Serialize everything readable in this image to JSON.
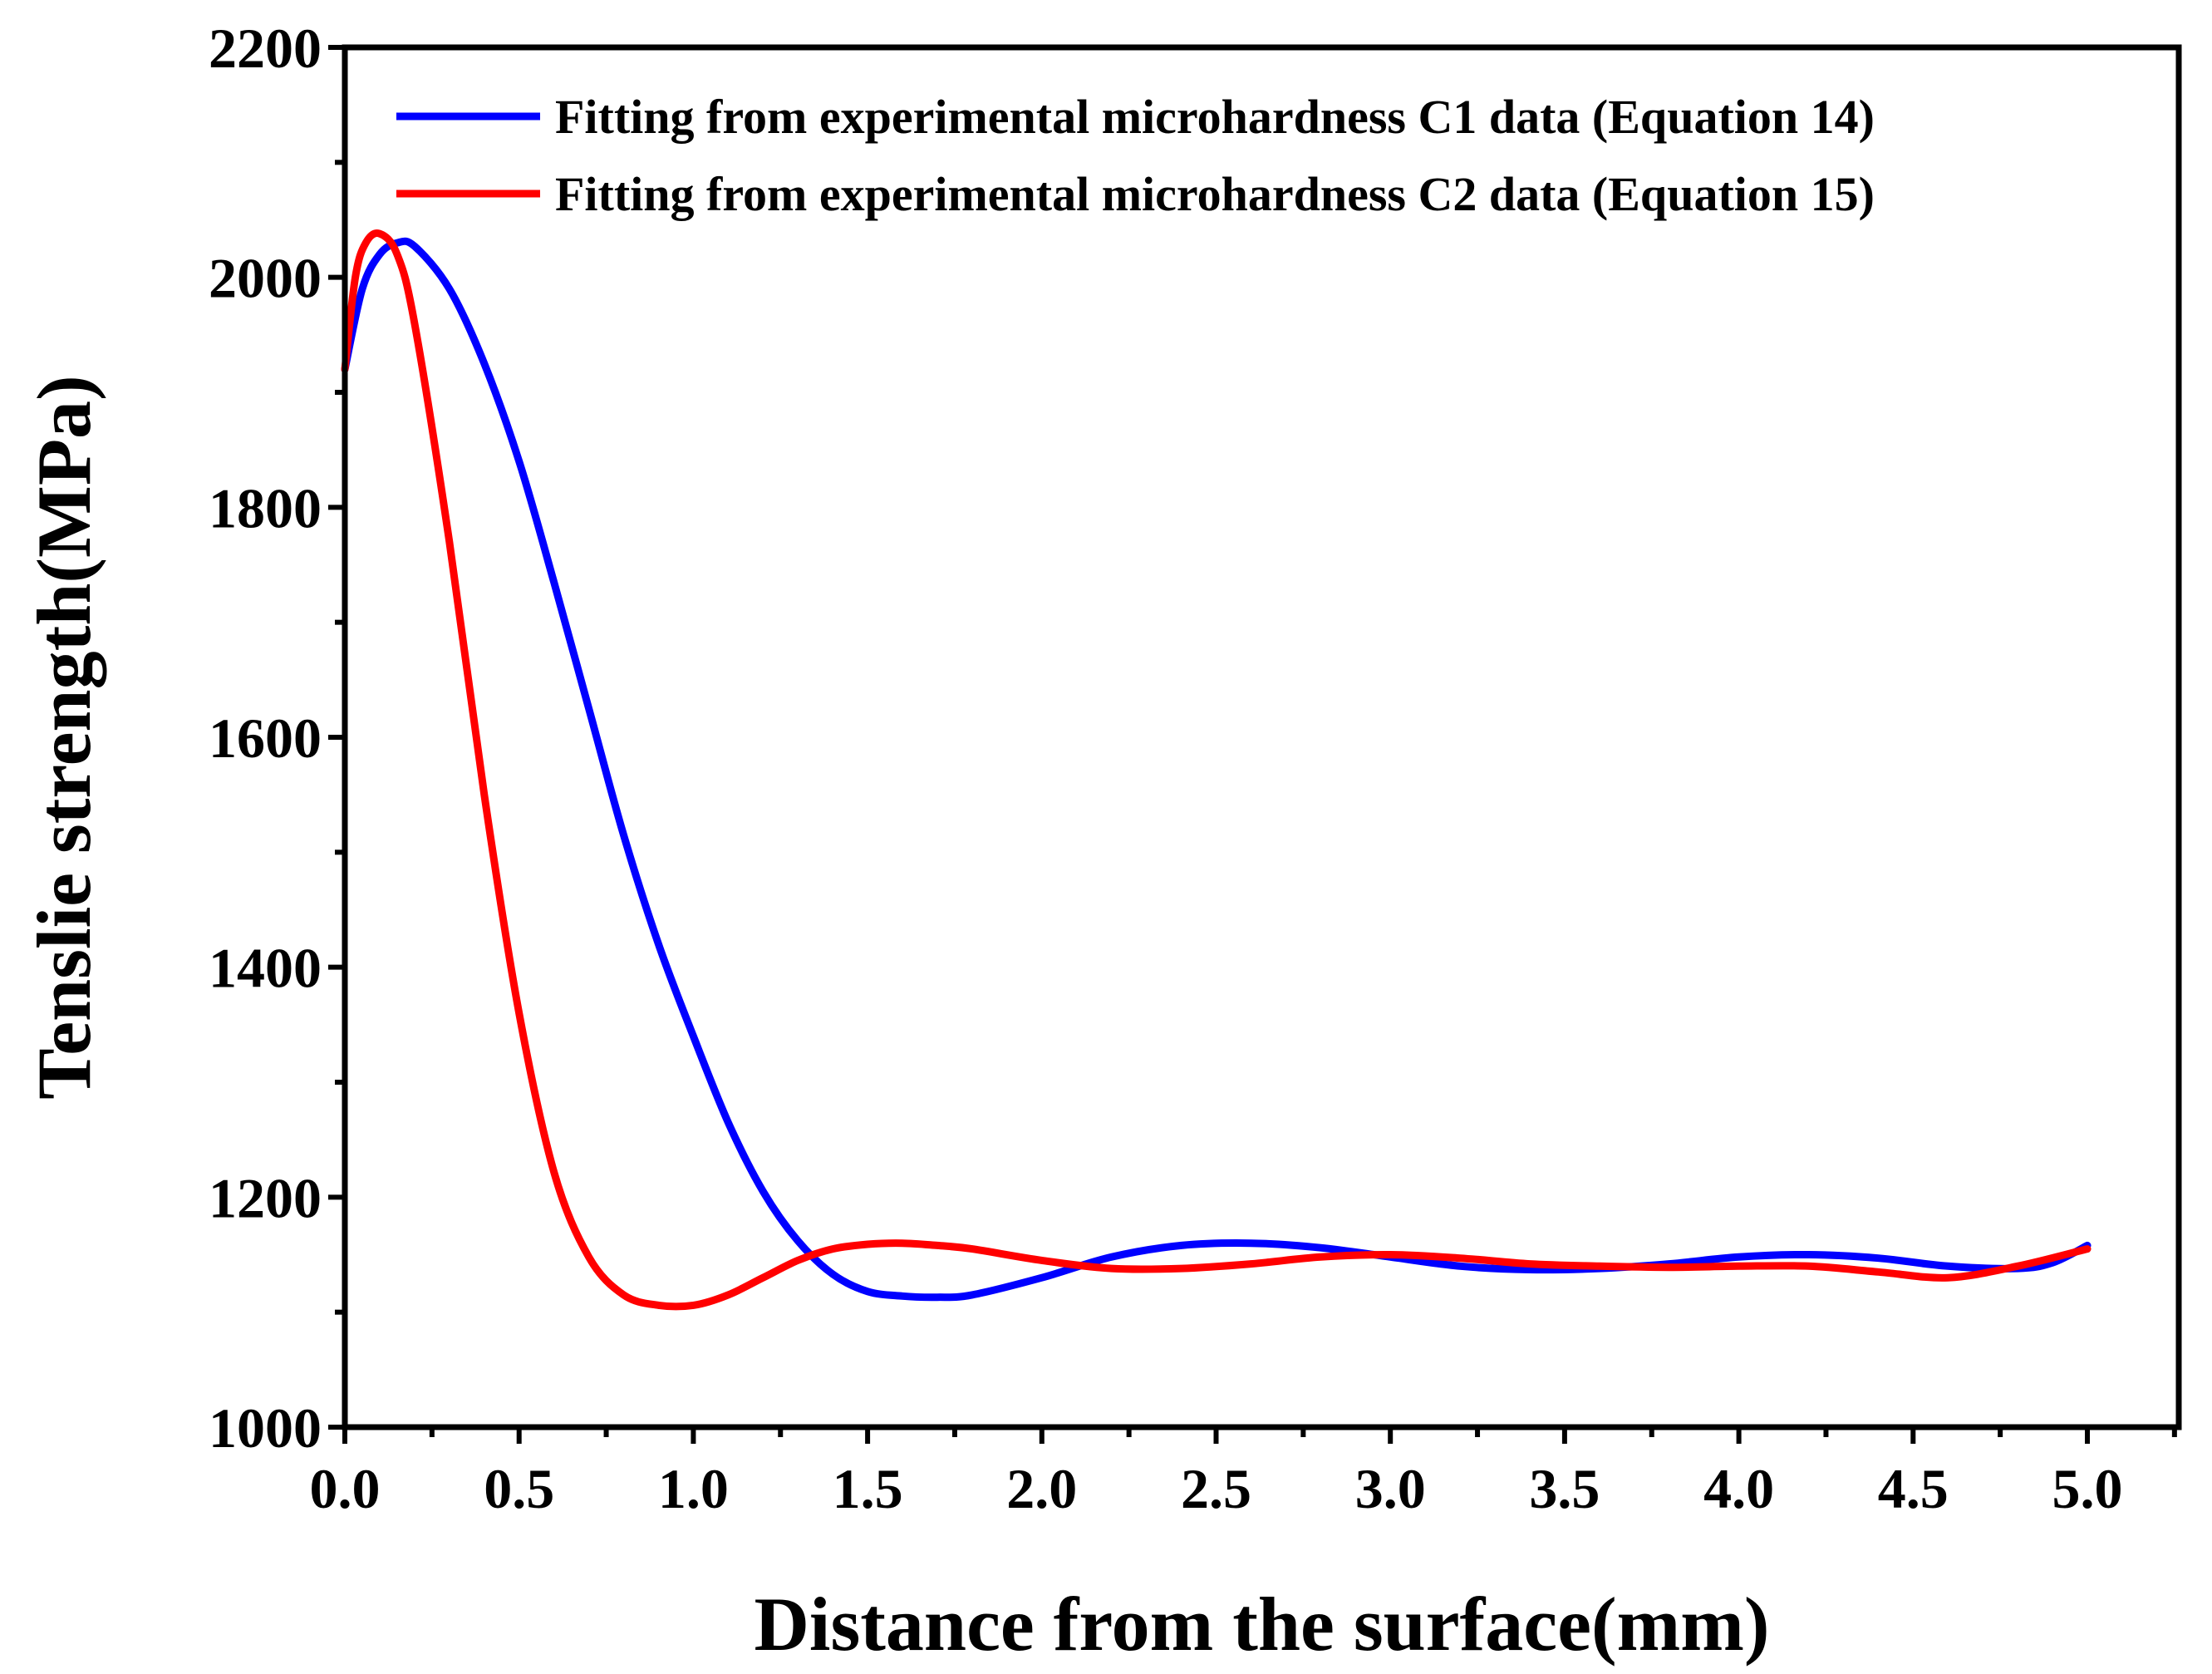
{
  "chart_data": {
    "type": "line",
    "title": "",
    "xlabel": "Distance from the surface(mm)",
    "ylabel": "Tenslie strength(MPa)",
    "xlim": [
      0.0,
      5.25
    ],
    "ylim": [
      1000,
      2200
    ],
    "xticks": [
      0.0,
      0.5,
      1.0,
      1.5,
      2.0,
      2.5,
      3.0,
      3.5,
      4.0,
      4.5,
      5.0
    ],
    "xtick_labels": [
      "0.0",
      "0.5",
      "1.0",
      "1.5",
      "2.0",
      "2.5",
      "3.0",
      "3.5",
      "4.0",
      "4.5",
      "5.0"
    ],
    "yticks": [
      1000,
      1200,
      1400,
      1600,
      1800,
      2000,
      2200
    ],
    "ytick_labels": [
      "1000",
      "1200",
      "1400",
      "1600",
      "1800",
      "2000",
      "2200"
    ],
    "grid": false,
    "legend_position": "top-right",
    "series": [
      {
        "name": "Fitting from experimental microhardness C1 data (Equation 14)",
        "color": "#0000FF",
        "x": [
          0.0,
          0.05,
          0.1,
          0.15,
          0.2,
          0.3,
          0.4,
          0.5,
          0.6,
          0.7,
          0.8,
          0.9,
          1.0,
          1.1,
          1.2,
          1.3,
          1.4,
          1.5,
          1.6,
          1.7,
          1.8,
          2.0,
          2.2,
          2.4,
          2.6,
          2.8,
          3.0,
          3.2,
          3.4,
          3.6,
          3.8,
          4.0,
          4.2,
          4.4,
          4.6,
          4.8,
          4.9,
          5.0
        ],
        "y": [
          1920,
          1990,
          2020,
          2030,
          2027,
          1990,
          1925,
          1840,
          1735,
          1625,
          1515,
          1420,
          1340,
          1265,
          1205,
          1162,
          1133,
          1118,
          1114,
          1113,
          1115,
          1130,
          1148,
          1158,
          1160,
          1156,
          1148,
          1140,
          1137,
          1138,
          1142,
          1148,
          1150,
          1147,
          1140,
          1138,
          1143,
          1158
        ]
      },
      {
        "name": "Fitting from experimental microhardness C2 data (Equation 15)",
        "color": "#FF0000",
        "x": [
          0.0,
          0.03,
          0.06,
          0.1,
          0.15,
          0.2,
          0.3,
          0.4,
          0.5,
          0.6,
          0.7,
          0.8,
          0.9,
          1.0,
          1.1,
          1.2,
          1.3,
          1.4,
          1.5,
          1.6,
          1.7,
          1.8,
          2.0,
          2.2,
          2.4,
          2.6,
          2.8,
          3.0,
          3.2,
          3.4,
          3.6,
          3.8,
          4.0,
          4.2,
          4.4,
          4.6,
          4.8,
          5.0
        ],
        "y": [
          1920,
          2000,
          2030,
          2038,
          2020,
          1960,
          1770,
          1550,
          1360,
          1222,
          1148,
          1115,
          1106,
          1106,
          1115,
          1130,
          1145,
          1155,
          1159,
          1160,
          1158,
          1155,
          1145,
          1138,
          1138,
          1142,
          1148,
          1150,
          1147,
          1142,
          1140,
          1139,
          1140,
          1140,
          1135,
          1130,
          1140,
          1155
        ]
      }
    ]
  }
}
